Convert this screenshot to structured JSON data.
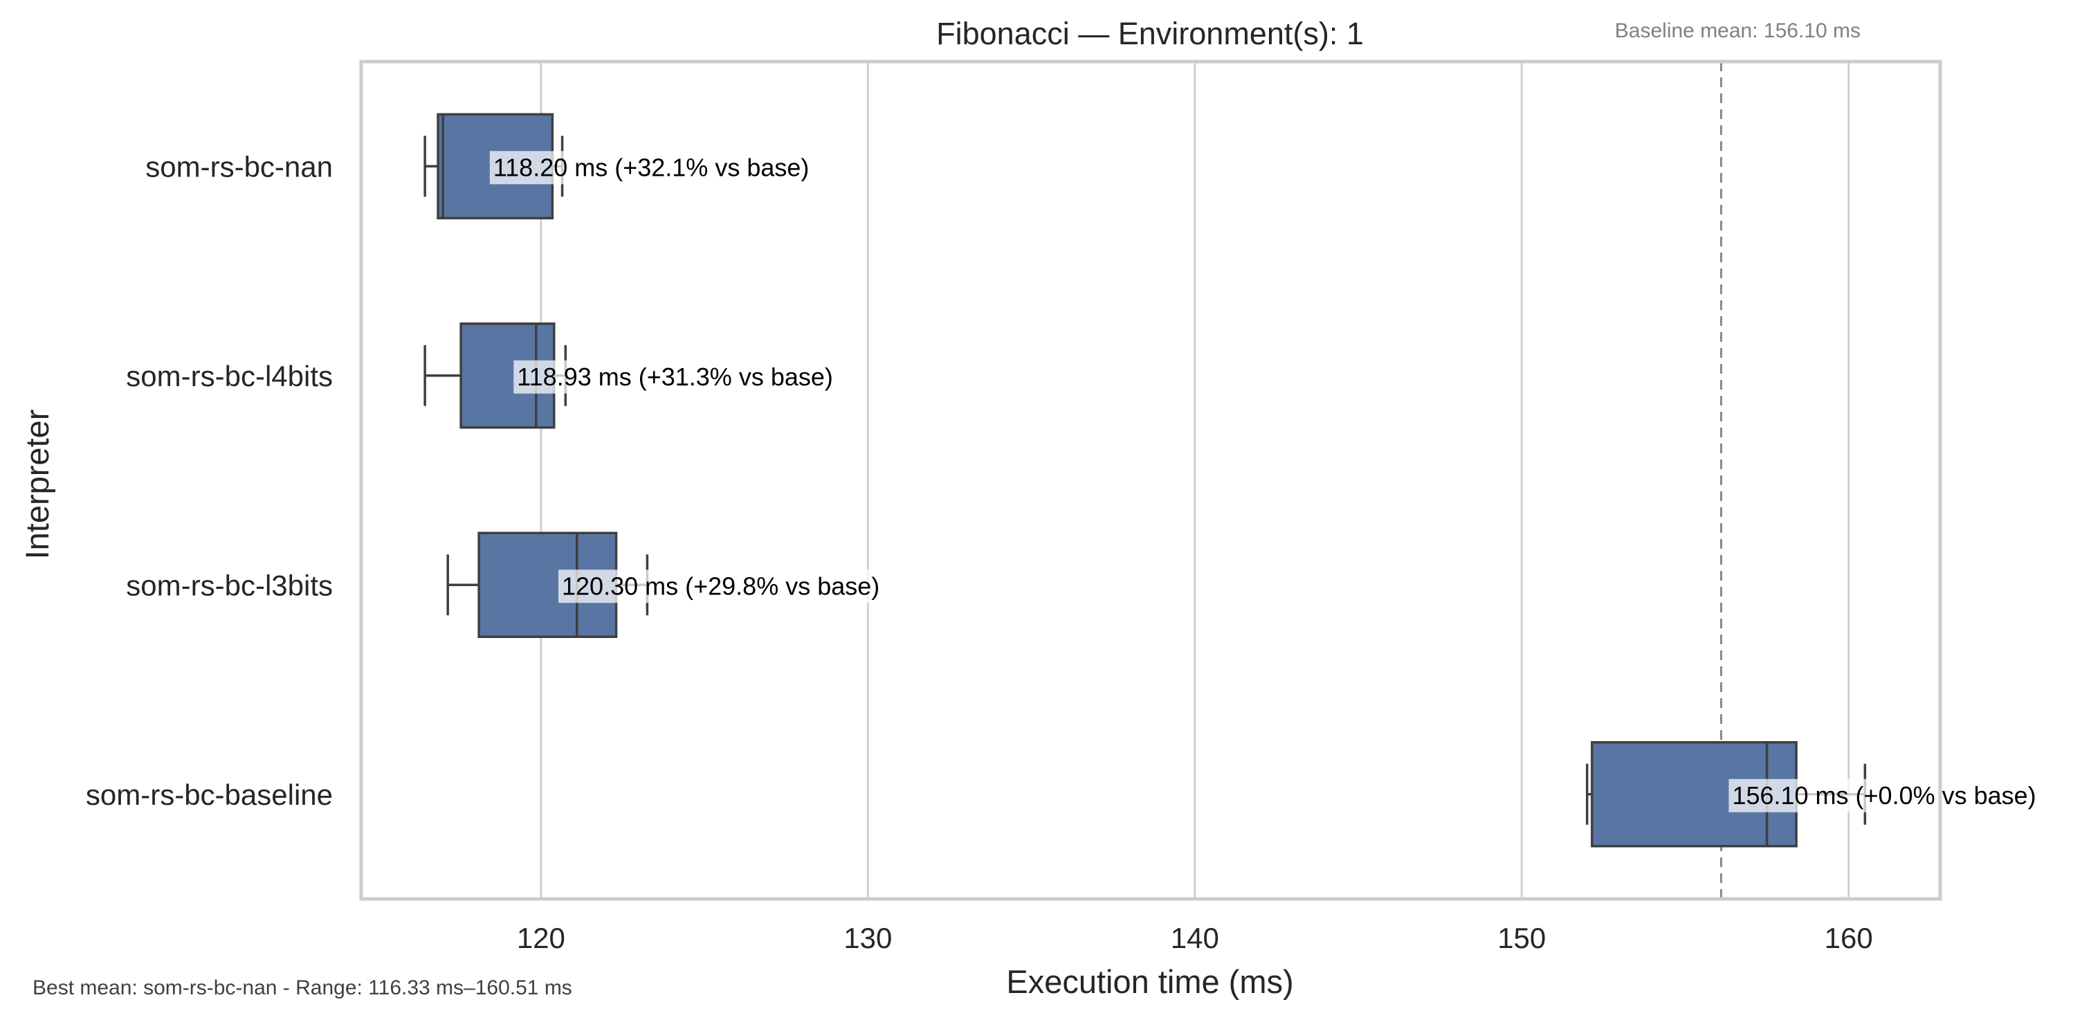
{
  "chart_data": {
    "type": "box",
    "orientation": "horizontal",
    "title": "Fibonacci — Environment(s): 1",
    "xlabel": "Execution time (ms)",
    "ylabel": "Interpreter",
    "xlim": [
      114.5,
      162.8
    ],
    "xticks": [
      120,
      130,
      140,
      150,
      160
    ],
    "xtick_labels": [
      "120",
      "130",
      "140",
      "150",
      "160"
    ],
    "grid": "vertical",
    "box_color": "#5975a4",
    "categories": [
      "som-rs-bc-nan",
      "som-rs-bc-l4bits",
      "som-rs-bc-l3bits",
      "som-rs-bc-baseline"
    ],
    "boxes": [
      {
        "name": "som-rs-bc-nan",
        "whisker_low": 116.45,
        "q1": 116.85,
        "median": 117.0,
        "q3": 120.35,
        "whisker_high": 120.65,
        "annotation": "118.20 ms  (+32.1% vs base)",
        "mean": 118.2
      },
      {
        "name": "som-rs-bc-l4bits",
        "whisker_low": 116.45,
        "q1": 117.55,
        "median": 119.85,
        "q3": 120.4,
        "whisker_high": 120.75,
        "annotation": "118.93 ms  (+31.3% vs base)",
        "mean": 118.93
      },
      {
        "name": "som-rs-bc-l3bits",
        "whisker_low": 117.15,
        "q1": 118.1,
        "median": 121.1,
        "q3": 122.3,
        "whisker_high": 123.25,
        "annotation": "120.30 ms  (+29.8% vs base)",
        "mean": 120.3
      },
      {
        "name": "som-rs-bc-baseline",
        "whisker_low": 152.0,
        "q1": 152.15,
        "median": 157.5,
        "q3": 158.4,
        "whisker_high": 160.5,
        "annotation": "156.10 ms  (+0.0% vs base)",
        "mean": 156.1
      }
    ],
    "baseline": {
      "value": 156.1,
      "label": "Baseline mean: 156.10 ms",
      "color": "#888888",
      "style": "dashed"
    },
    "footnote": "Best mean: som-rs-bc-nan - Range: 116.33 ms–160.51 ms"
  }
}
